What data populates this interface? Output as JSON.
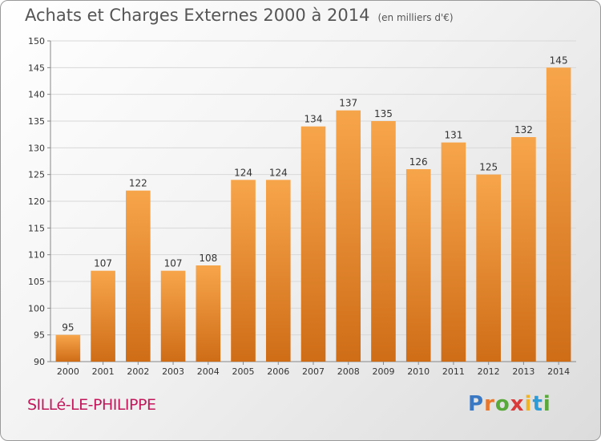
{
  "header": {
    "title": "Achats et Charges Externes 2000 à 2014",
    "unit": "(en milliers d'€)"
  },
  "footer": {
    "place": "SILLé-LE-PHILIPPE",
    "logo": "Proxiti",
    "logo_letters": [
      "P",
      "r",
      "o",
      "x",
      "i",
      "t",
      "i"
    ]
  },
  "colors": {
    "bar_light": "#f7a54b",
    "bar_dark": "#cf6d17",
    "grid": "#d8d8d8",
    "place": "#c2185b"
  },
  "chart_data": {
    "type": "bar",
    "categories": [
      "2000",
      "2001",
      "2002",
      "2003",
      "2004",
      "2005",
      "2006",
      "2007",
      "2008",
      "2009",
      "2010",
      "2011",
      "2012",
      "2013",
      "2014"
    ],
    "values": [
      95,
      107,
      122,
      107,
      108,
      124,
      124,
      134,
      137,
      135,
      126,
      131,
      125,
      132,
      145
    ],
    "title": "Achats et Charges Externes 2000 à 2014",
    "xlabel": "",
    "ylabel": "",
    "ylim": [
      90,
      150
    ],
    "yticks": [
      90,
      95,
      100,
      105,
      110,
      115,
      120,
      125,
      130,
      135,
      140,
      145,
      150
    ],
    "grid": true,
    "legend": "none",
    "data_labels": true
  }
}
